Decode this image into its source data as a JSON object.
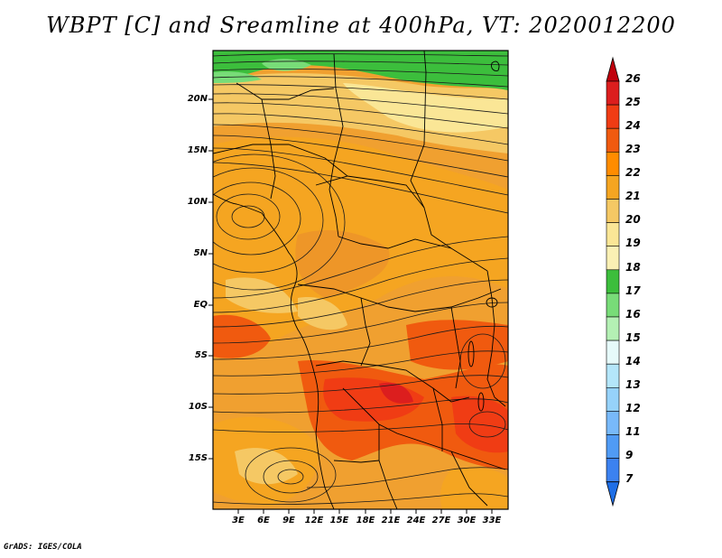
{
  "title": "WBPT [C] and Sreamline at 400hPa, VT: 2020012200",
  "credit": "GrADS: IGES/COLA",
  "lat_labels": [
    "20N",
    "15N",
    "10N",
    "5N",
    "EQ",
    "5S",
    "10S",
    "15S"
  ],
  "lon_labels": [
    "3E",
    "6E",
    "9E",
    "12E",
    "15E",
    "18E",
    "21E",
    "24E",
    "27E",
    "30E",
    "33E"
  ],
  "colorbar": {
    "labels": [
      "26",
      "25",
      "24",
      "23",
      "22",
      "21",
      "20",
      "19",
      "18",
      "17",
      "16",
      "15",
      "14",
      "13",
      "12",
      "11",
      "9",
      "7"
    ],
    "colors": [
      "#c0000c",
      "#dc1e1e",
      "#f03c14",
      "#f05a0f",
      "#ff8c00",
      "#f5a521",
      "#f5c864",
      "#fae696",
      "#faf0b4",
      "#3cbe3c",
      "#78dc78",
      "#b4f0b4",
      "#e6fafa",
      "#b4e6fa",
      "#96d2fa",
      "#78b9fa",
      "#509bf5",
      "#3c82f0",
      "#1e6ee6"
    ]
  }
}
